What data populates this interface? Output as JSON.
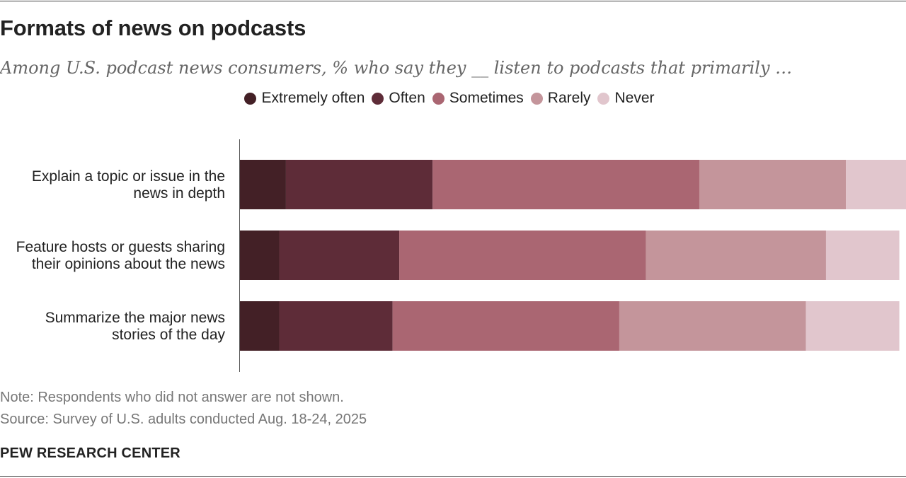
{
  "header": {
    "title": "Formats of news on podcasts",
    "subtitle": "Among U.S. podcast news consumers, % who say they __ listen to podcasts that primarily …"
  },
  "legend": [
    {
      "label": "Extremely often",
      "color": "#432026"
    },
    {
      "label": "Often",
      "color": "#5e2c38"
    },
    {
      "label": "Sometimes",
      "color": "#aa6672"
    },
    {
      "label": "Rarely",
      "color": "#c4959b"
    },
    {
      "label": "Never",
      "color": "#e1c6cd"
    }
  ],
  "rows": [
    {
      "label_line1": "Explain a topic or issue in the",
      "label_line2": "news in depth"
    },
    {
      "label_line1": "Feature hosts or guests sharing",
      "label_line2": "their opinions about the news"
    },
    {
      "label_line1": "Summarize the major news",
      "label_line2": "stories of the day"
    }
  ],
  "chart_data": {
    "type": "bar",
    "orientation": "horizontal",
    "stacked": true,
    "categories": [
      "Explain a topic or issue in the news in depth",
      "Feature hosts or guests sharing their opinions about the news",
      "Summarize the major news stories of the day"
    ],
    "series": [
      {
        "name": "Extremely often",
        "color": "#432026",
        "values": [
          7,
          6,
          6
        ]
      },
      {
        "name": "Often",
        "color": "#5e2c38",
        "values": [
          22,
          18,
          17
        ]
      },
      {
        "name": "Sometimes",
        "color": "#aa6672",
        "values": [
          40,
          37,
          34
        ]
      },
      {
        "name": "Rarely",
        "color": "#c4959b",
        "values": [
          22,
          27,
          28
        ]
      },
      {
        "name": "Never",
        "color": "#e1c6cd",
        "values": [
          9,
          11,
          14
        ]
      }
    ],
    "xlim": [
      0,
      100
    ],
    "grid": false,
    "legend_position": "top-center"
  },
  "footer": {
    "note": "Note: Respondents who did not answer are not shown.",
    "source": "Source: Survey of U.S. adults conducted Aug. 18-24, 2025",
    "brand": "PEW RESEARCH CENTER"
  }
}
